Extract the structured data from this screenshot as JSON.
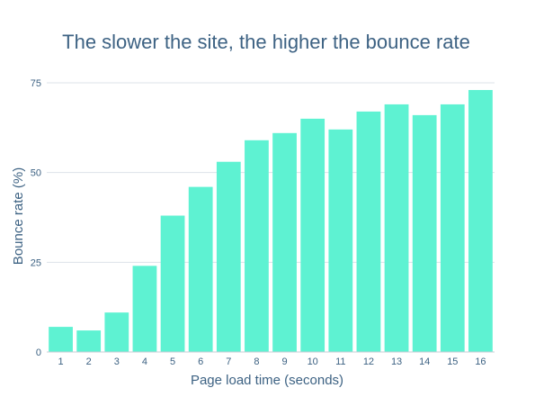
{
  "chart_data": {
    "type": "bar",
    "title": "The slower the site, the higher the bounce rate",
    "xlabel": "Page load time (seconds)",
    "ylabel": "Bounce rate (%)",
    "categories": [
      "1",
      "2",
      "3",
      "4",
      "5",
      "6",
      "7",
      "8",
      "9",
      "10",
      "11",
      "12",
      "13",
      "14",
      "15",
      "16"
    ],
    "values": [
      7,
      6,
      11,
      24,
      38,
      46,
      53,
      59,
      61,
      65,
      62,
      67,
      69,
      66,
      69,
      73
    ],
    "ylim": [
      0,
      75
    ],
    "yticks": [
      0,
      25,
      50,
      75
    ],
    "grid": true,
    "legend": "none"
  },
  "colors": {
    "bar": "#5ef2d2",
    "title": "#3d6283",
    "text": "#3d6283",
    "grid": "#dde3ea",
    "axis": "#c7ced6"
  }
}
